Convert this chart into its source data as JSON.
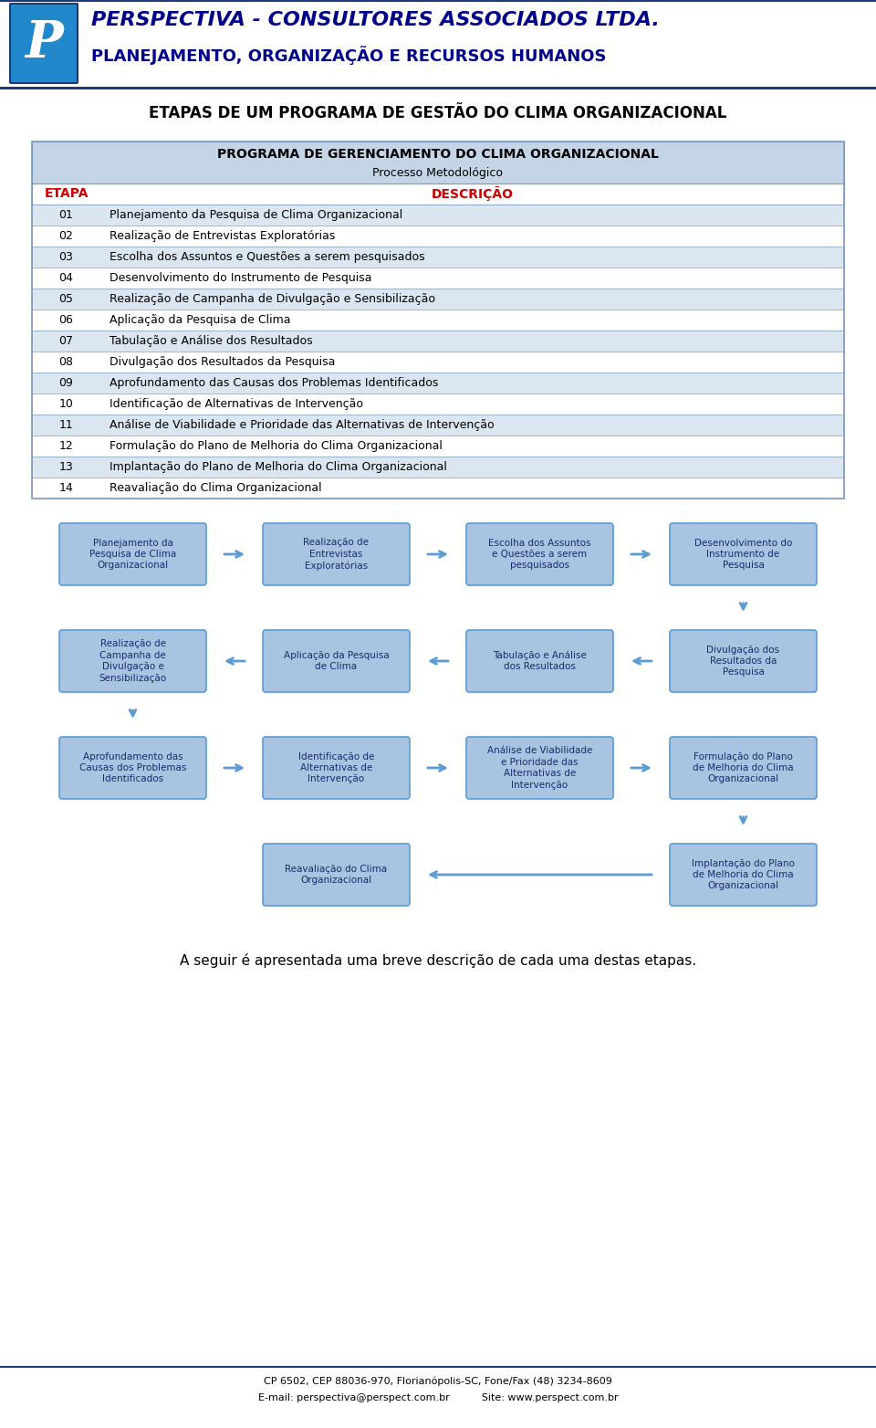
{
  "company_title": "PERSPECTIVA - CONSULTORES ASSOCIADOS LTDA.",
  "company_subtitle": "PLANEJAMENTO, ORGANIZAÇÃO E RECURSOS HUMANOS",
  "page_title": "ETAPAS DE UM PROGRAMA DE GESTÃO DO CLIMA ORGANIZACIONAL",
  "table_header1": "PROGRAMA DE GERENCIAMENTO DO CLIMA ORGANIZACIONAL",
  "table_header2": "Processo Metodológico",
  "col_etapa": "ETAPA",
  "col_desc": "DESCRIÇÃO",
  "etapas": [
    [
      "01",
      "Planejamento da Pesquisa de Clima Organizacional"
    ],
    [
      "02",
      "Realização de Entrevistas Exploratórias"
    ],
    [
      "03",
      "Escolha dos Assuntos e Questões a serem pesquisados"
    ],
    [
      "04",
      "Desenvolvimento do Instrumento de Pesquisa"
    ],
    [
      "05",
      "Realização de Campanha de Divulgação e Sensibilização"
    ],
    [
      "06",
      "Aplicação da Pesquisa de Clima"
    ],
    [
      "07",
      "Tabulação e Análise dos Resultados"
    ],
    [
      "08",
      "Divulgação dos Resultados da Pesquisa"
    ],
    [
      "09",
      "Aprofundamento das Causas dos Problemas Identificados"
    ],
    [
      "10",
      "Identificação de Alternativas de Intervenção"
    ],
    [
      "11",
      "Análise de Viabilidade e Prioridade das Alternativas de Intervenção"
    ],
    [
      "12",
      "Formulação do Plano de Melhoria do Clima Organizacional"
    ],
    [
      "13",
      "Implantação do Plano de Melhoria do Clima Organizacional"
    ],
    [
      "14",
      "Reavaliação do Clima Organizacional"
    ]
  ],
  "flow_boxes_row1": [
    "Planejamento da\nPesquisa de Clima\nOrganizacional",
    "Realização de\nEntrevistas\nExploratórias",
    "Escolha dos Assuntos\ne Questões a serem\npesquisados",
    "Desenvolvimento do\nInstrumento de\nPesquisa"
  ],
  "flow_boxes_row2": [
    "Divulgação dos\nResultados da\nPesquisa",
    "Tabulação e Análise\ndos Resultados",
    "Aplicação da Pesquisa\nde Clima",
    "Realização de\nCampanha de\nDivulgação e\nSensibilização"
  ],
  "flow_boxes_row3": [
    "Aprofundamento das\nCausas dos Problemas\nIdentificados",
    "Identificação de\nAlternativas de\nIntervenção",
    "Análise de Viabilidade\ne Prioridade das\nAlternativas de\nIntervenção",
    "Formulação do Plano\nde Melhoria do Clima\nOrganizacional"
  ],
  "flow_boxes_row4_left": "Reavaliação do Clima\nOrganizacional",
  "flow_boxes_row4_right": "Implantação do Plano\nde Melhoria do Clima\nOrganizacional",
  "footer_line1": "CP 6502, CEP 88036-970, Florianópolis-SC, Fone/Fax (48) 3234-8609",
  "footer_line2": "E-mail: perspectiva@perspect.com.br          Site: www.perspect.com.br",
  "bottom_text": "A seguir é apresentada uma breve descrição de cada uma destas etapas.",
  "color_header_bg": "#c5d5e8",
  "color_row_alt": "#dce6f1",
  "color_row_normal": "#ffffff",
  "color_red": "#cc0000",
  "color_dark_blue": "#00008B",
  "color_box": "#a8c4e0",
  "color_border": "#7a9cbf",
  "color_line_blue": "#1a3a7a"
}
